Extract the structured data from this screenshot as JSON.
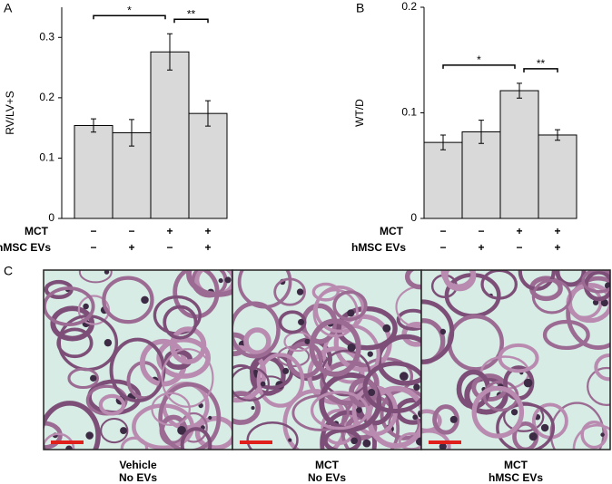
{
  "panels": {
    "a": "A",
    "b": "B",
    "c": "C"
  },
  "chart_data": [
    {
      "type": "bar",
      "ylabel": "RV/LV+S",
      "ylim": [
        0,
        0.35
      ],
      "yticks": [
        0,
        0.1,
        0.2,
        0.3
      ],
      "values": [
        0.154,
        0.142,
        0.276,
        0.174
      ],
      "errors": [
        0.011,
        0.022,
        0.03,
        0.021
      ],
      "color": "#d9d9d9",
      "conditions": [
        {
          "name": "MCT",
          "signs": [
            "−",
            "−",
            "+",
            "+"
          ]
        },
        {
          "name": "hMSC EVs",
          "signs": [
            "−",
            "+",
            "−",
            "+"
          ]
        }
      ],
      "significance": [
        "*",
        "**"
      ]
    },
    {
      "type": "bar",
      "ylabel": "WT/D",
      "ylim": [
        0,
        0.2
      ],
      "yticks": [
        0,
        0.1,
        0.2
      ],
      "values": [
        0.072,
        0.082,
        0.121,
        0.079
      ],
      "errors": [
        0.007,
        0.011,
        0.007,
        0.005
      ],
      "color": "#d9d9d9",
      "conditions": [
        {
          "name": "MCT",
          "signs": [
            "−",
            "−",
            "+",
            "+"
          ]
        },
        {
          "name": "hMSC EVs",
          "signs": [
            "−",
            "+",
            "−",
            "+"
          ]
        }
      ],
      "significance": [
        "*",
        "**"
      ]
    }
  ],
  "images": [
    {
      "caption": [
        "Vehicle",
        "No EVs"
      ]
    },
    {
      "caption": [
        "MCT",
        "No EVs"
      ]
    },
    {
      "caption": [
        "MCT",
        "hMSC EVs"
      ]
    }
  ]
}
